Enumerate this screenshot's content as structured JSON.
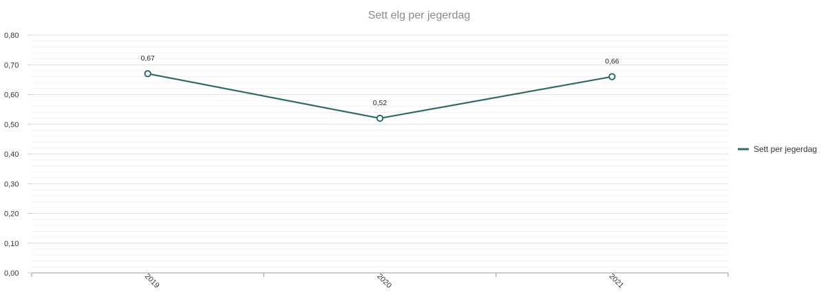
{
  "chart_data": {
    "type": "line",
    "title": "Sett elg per jegerdag",
    "categories": [
      "2019",
      "2020",
      "2021"
    ],
    "series": [
      {
        "name": "Sett per jegerdag",
        "values": [
          0.67,
          0.52,
          0.66
        ],
        "value_labels": [
          "0,67",
          "0,52",
          "0,66"
        ],
        "color": "#2f6b63"
      }
    ],
    "ylim": [
      0,
      0.8
    ],
    "yticks": [
      0,
      0.1,
      0.2,
      0.3,
      0.4,
      0.5,
      0.6,
      0.7,
      0.8
    ],
    "ytick_labels": [
      "0,00",
      "0,10",
      "0,20",
      "0,30",
      "0,40",
      "0,50",
      "0,60",
      "0,70",
      "0,80"
    ],
    "minor_grid": true,
    "grid": true,
    "legend_position": "right"
  }
}
